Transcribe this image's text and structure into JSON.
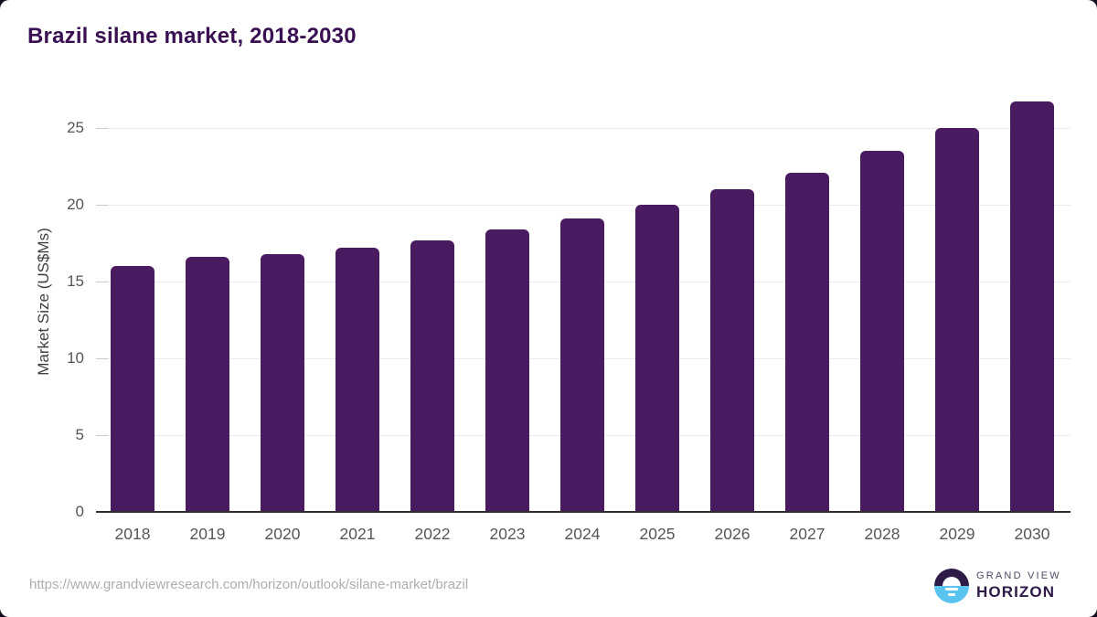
{
  "chart_data": {
    "type": "bar",
    "title": "Brazil silane market, 2018-2030",
    "xlabel": "",
    "ylabel": "Market Size (US$Ms)",
    "categories": [
      "2018",
      "2019",
      "2020",
      "2021",
      "2022",
      "2023",
      "2024",
      "2025",
      "2026",
      "2027",
      "2028",
      "2029",
      "2030"
    ],
    "values": [
      16.0,
      16.6,
      16.8,
      17.2,
      17.7,
      18.4,
      19.1,
      20.0,
      21.0,
      22.1,
      23.5,
      25.0,
      26.7
    ],
    "yticks": [
      0,
      5,
      10,
      15,
      20,
      25
    ],
    "ylim": [
      0,
      27.5
    ],
    "grid": true,
    "legend_position": "none",
    "bar_color": "#4a1b61"
  },
  "colors": {
    "title": "#3a1053",
    "bar": "#4a1b61",
    "axis": "#2d2d2d",
    "grid": "#ebebeb",
    "tick": "#c9c9c9",
    "tick-label": "#55565a",
    "x-label": "#55565a",
    "url": "#aeaeae",
    "logo-dark": "#2e1a47",
    "logo-blue": "#5bc3f0",
    "logo-gray": "#4e4965",
    "frame-bg": "#130b1e"
  },
  "footer": {
    "url": "https://www.grandviewresearch.com/horizon/outlook/silane-market/brazil",
    "logo": {
      "line1": "GRAND VIEW",
      "line2": "HORIZON"
    }
  }
}
